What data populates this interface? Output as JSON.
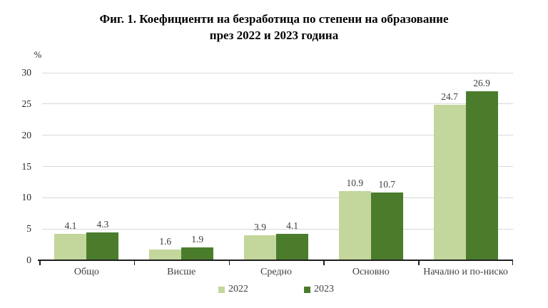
{
  "title": {
    "line1": "Фиг. 1. Коефициенти на безработица по степени на образование",
    "line2": "през 2022 и 2023 година"
  },
  "chart_data": {
    "type": "bar",
    "title": "Фиг. 1. Коефициенти на безработица по степени на образование през 2022 и 2023 година",
    "ylabel": "%",
    "categories": [
      "Общо",
      "Висше",
      "Средно",
      "Основно",
      "Начално и по-ниско"
    ],
    "series": [
      {
        "name": "2022",
        "color": "#c3d69b",
        "values": [
          4.1,
          1.6,
          3.9,
          10.9,
          24.7
        ]
      },
      {
        "name": "2023",
        "color": "#4b7c2c",
        "values": [
          4.3,
          1.9,
          4.1,
          10.7,
          26.9
        ]
      }
    ],
    "ylim": [
      0,
      30
    ],
    "yticks": [
      0,
      5,
      10,
      15,
      20,
      25,
      30
    ],
    "grid": true,
    "legend_position": "bottom",
    "value_labels": true
  },
  "style": {
    "gridline_color": "#d9d9d9",
    "axis_color": "#1f1f1f",
    "text_color": "#3f3f3f",
    "title_color": "#000000",
    "background": "#ffffff"
  }
}
